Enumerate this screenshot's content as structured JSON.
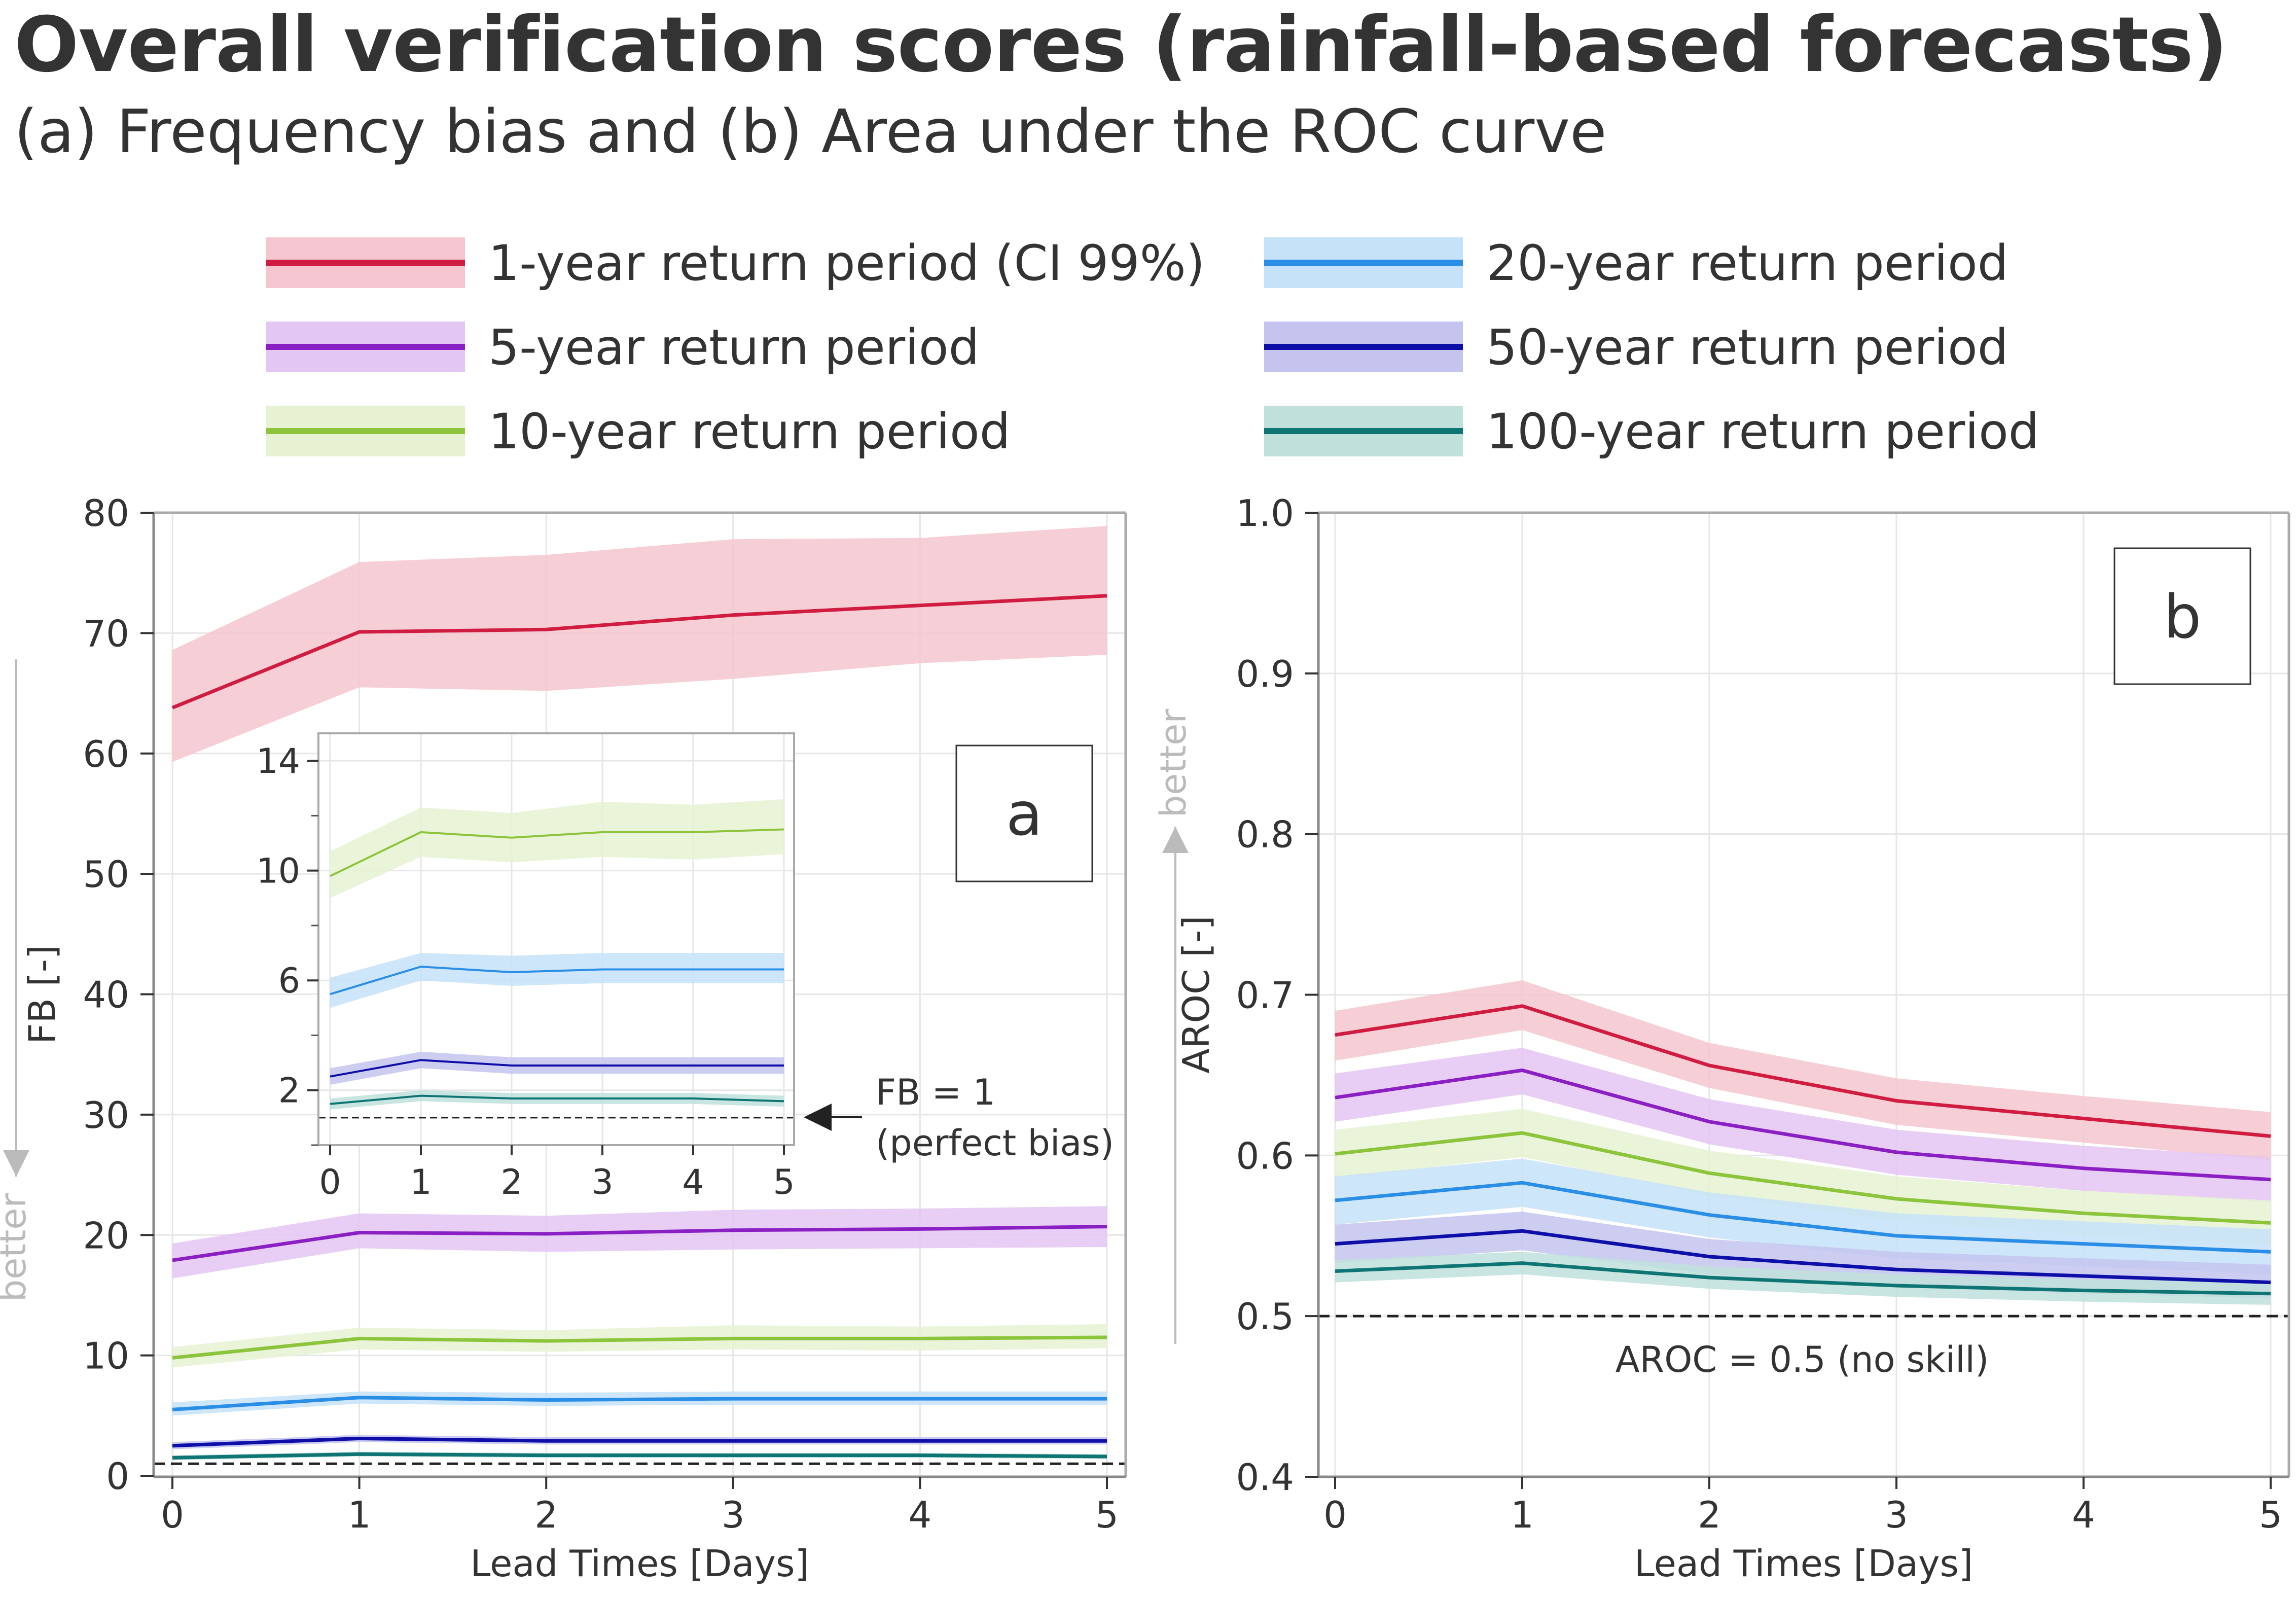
{
  "title": "Overall verification scores (rainfall-based forecasts)",
  "subtitle": "(a) Frequency bias and (b) Area under the ROC curve",
  "legend": [
    {
      "label": "1-year return period (CI 99%)",
      "color": "#d01c40",
      "band": "#f5c6cf"
    },
    {
      "label": "5-year return period",
      "color": "#8a1fc4",
      "band": "#e4c6f2"
    },
    {
      "label": "10-year return period",
      "color": "#8cc43c",
      "band": "#e6f2d2"
    },
    {
      "label": "20-year return period",
      "color": "#2a8ee6",
      "band": "#c6e2f8"
    },
    {
      "label": "50-year return period",
      "color": "#0e0ea8",
      "band": "#c4c4ee"
    },
    {
      "label": "100-year return period",
      "color": "#0e7474",
      "band": "#c0e0dc"
    }
  ],
  "chart_data": [
    {
      "type": "line",
      "panel_label": "a",
      "xlabel": "Lead Times [Days]",
      "ylabel": "FB [-]",
      "better_label": "better",
      "x": [
        0,
        1,
        2,
        3,
        4,
        5
      ],
      "xticks": [
        "0",
        "1",
        "2",
        "3",
        "4",
        "5"
      ],
      "ylim": [
        0,
        80
      ],
      "yticks": [
        "0",
        "10",
        "20",
        "30",
        "40",
        "50",
        "60",
        "70",
        "80"
      ],
      "reference_line": 1,
      "annotation": [
        "FB = 1",
        "(perfect bias)"
      ],
      "series": [
        {
          "name": "1-year return period (CI 99%)",
          "values": [
            63.8,
            70.1,
            70.3,
            71.5,
            72.3,
            73.1
          ],
          "lower": [
            59.3,
            65.5,
            65.2,
            66.2,
            67.5,
            68.2
          ],
          "upper": [
            68.6,
            75.9,
            76.5,
            77.8,
            77.9,
            78.9
          ]
        },
        {
          "name": "5-year return period",
          "values": [
            17.9,
            20.2,
            20.1,
            20.4,
            20.5,
            20.7
          ],
          "lower": [
            16.4,
            18.9,
            18.6,
            18.8,
            18.9,
            19.0
          ],
          "upper": [
            19.3,
            21.8,
            21.6,
            22.1,
            22.2,
            22.4
          ]
        },
        {
          "name": "10-year return period",
          "values": [
            9.8,
            11.4,
            11.2,
            11.4,
            11.4,
            11.5
          ],
          "lower": [
            9.0,
            10.5,
            10.3,
            10.5,
            10.4,
            10.6
          ],
          "upper": [
            10.7,
            12.3,
            12.1,
            12.5,
            12.4,
            12.6
          ]
        },
        {
          "name": "20-year return period",
          "values": [
            5.5,
            6.5,
            6.3,
            6.4,
            6.4,
            6.4
          ],
          "lower": [
            5.0,
            6.0,
            5.8,
            5.9,
            5.9,
            5.9
          ],
          "upper": [
            6.1,
            7.0,
            6.9,
            7.0,
            7.0,
            7.0
          ]
        },
        {
          "name": "50-year return period",
          "values": [
            2.5,
            3.1,
            2.9,
            2.9,
            2.9,
            2.9
          ],
          "lower": [
            2.2,
            2.8,
            2.6,
            2.6,
            2.6,
            2.6
          ],
          "upper": [
            2.8,
            3.4,
            3.2,
            3.2,
            3.2,
            3.2
          ]
        },
        {
          "name": "100-year return period",
          "values": [
            1.5,
            1.8,
            1.7,
            1.7,
            1.7,
            1.6
          ],
          "lower": [
            1.3,
            1.6,
            1.5,
            1.5,
            1.5,
            1.4
          ],
          "upper": [
            1.7,
            2.0,
            1.9,
            1.9,
            1.9,
            1.8
          ]
        }
      ],
      "inset": {
        "ylim": [
          0,
          15
        ],
        "yticks": [
          "2",
          "6",
          "10",
          "14"
        ],
        "xticks": [
          "0",
          "1",
          "2",
          "3",
          "4",
          "5"
        ]
      }
    },
    {
      "type": "line",
      "panel_label": "b",
      "xlabel": "Lead Times [Days]",
      "ylabel": "AROC [-]",
      "better_label": "better",
      "x": [
        0,
        1,
        2,
        3,
        4,
        5
      ],
      "xticks": [
        "0",
        "1",
        "2",
        "3",
        "4",
        "5"
      ],
      "ylim": [
        0.4,
        1.0
      ],
      "yticks": [
        "0.4",
        "0.5",
        "0.6",
        "0.7",
        "0.8",
        "0.9",
        "1.0"
      ],
      "reference_line": 0.5,
      "annotation": [
        "AROC = 0.5 (no skill)"
      ],
      "series": [
        {
          "name": "1-year return period (CI 99%)",
          "values": [
            0.675,
            0.693,
            0.656,
            0.634,
            0.623,
            0.612
          ],
          "lower": [
            0.659,
            0.678,
            0.642,
            0.619,
            0.608,
            0.597
          ],
          "upper": [
            0.69,
            0.709,
            0.67,
            0.648,
            0.637,
            0.627
          ]
        },
        {
          "name": "5-year return period",
          "values": [
            0.636,
            0.653,
            0.621,
            0.602,
            0.592,
            0.585
          ],
          "lower": [
            0.621,
            0.638,
            0.607,
            0.588,
            0.578,
            0.571
          ],
          "upper": [
            0.651,
            0.667,
            0.635,
            0.616,
            0.606,
            0.599
          ]
        },
        {
          "name": "10-year return period",
          "values": [
            0.601,
            0.614,
            0.589,
            0.573,
            0.564,
            0.558
          ],
          "lower": [
            0.586,
            0.599,
            0.575,
            0.559,
            0.55,
            0.544
          ],
          "upper": [
            0.616,
            0.629,
            0.603,
            0.587,
            0.578,
            0.572
          ]
        },
        {
          "name": "20-year return period",
          "values": [
            0.572,
            0.583,
            0.563,
            0.55,
            0.545,
            0.54
          ],
          "lower": [
            0.557,
            0.568,
            0.549,
            0.536,
            0.531,
            0.526
          ],
          "upper": [
            0.587,
            0.598,
            0.577,
            0.564,
            0.559,
            0.554
          ]
        },
        {
          "name": "50-year return period",
          "values": [
            0.545,
            0.553,
            0.537,
            0.529,
            0.525,
            0.521
          ],
          "lower": [
            0.533,
            0.541,
            0.526,
            0.518,
            0.514,
            0.511
          ],
          "upper": [
            0.557,
            0.565,
            0.548,
            0.54,
            0.536,
            0.532
          ]
        },
        {
          "name": "100-year return period",
          "values": [
            0.528,
            0.533,
            0.524,
            0.519,
            0.516,
            0.514
          ],
          "lower": [
            0.521,
            0.526,
            0.517,
            0.512,
            0.509,
            0.507
          ],
          "upper": [
            0.535,
            0.54,
            0.531,
            0.526,
            0.523,
            0.521
          ]
        }
      ]
    }
  ]
}
